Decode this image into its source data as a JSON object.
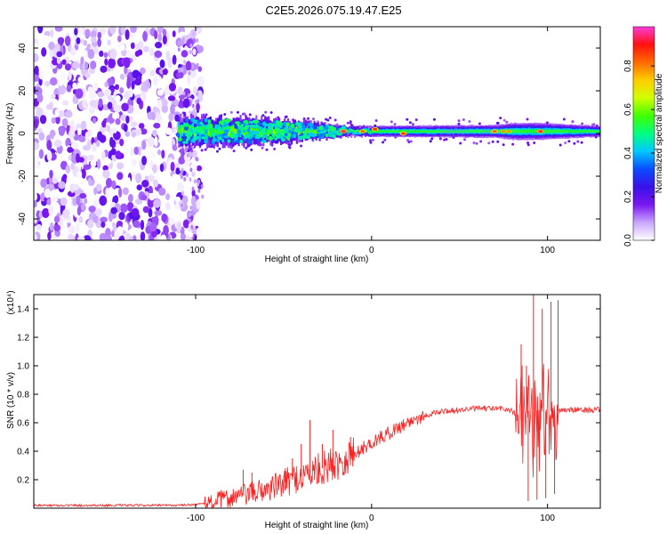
{
  "title": "C2E5.2026.075.19.47.E25",
  "chart_data": [
    {
      "type": "heatmap",
      "name": "spectrogram",
      "xlabel": "Height of straight line (km)",
      "ylabel": "Frequency (Hz)",
      "xlim": [
        -192,
        130
      ],
      "ylim": [
        -50,
        50
      ],
      "xticks": [
        -100,
        0,
        100
      ],
      "xtick_labels": [
        "-100",
        "0",
        "100"
      ],
      "yticks": [
        -40,
        -20,
        0,
        20,
        40
      ],
      "ytick_labels": [
        "-40",
        "-20",
        "0",
        "20",
        "40"
      ],
      "noise_region_km": [
        -192,
        -97
      ],
      "signal_start_km": -110,
      "band_center_hz": 1,
      "band_halfwidth_hz": [
        [
          -110,
          7
        ],
        [
          -60,
          6
        ],
        [
          -30,
          4
        ],
        [
          -15,
          2.5
        ],
        [
          70,
          3
        ],
        [
          80,
          4
        ],
        [
          95,
          4
        ],
        [
          130,
          2.5
        ]
      ],
      "hotspots": [
        {
          "x": -16,
          "f": 1,
          "amp": 0.95
        },
        {
          "x": -5,
          "f": 1,
          "amp": 0.85
        },
        {
          "x": 2,
          "f": 2,
          "amp": 0.9
        },
        {
          "x": 18,
          "f": 0,
          "amp": 0.9
        },
        {
          "x": 70,
          "f": 1,
          "amp": 0.85
        },
        {
          "x": 75,
          "f": 1,
          "amp": 0.8
        },
        {
          "x": 78,
          "f": 1,
          "amp": 0.8
        },
        {
          "x": 96,
          "f": 1,
          "amp": 0.95
        }
      ],
      "colorbar": {
        "label": "Normalized spectral amplitude",
        "range": [
          0,
          0.98
        ],
        "ticks": [
          0.0,
          0.2,
          0.4,
          0.6,
          0.8
        ],
        "tick_labels": [
          "0.0",
          "0.2",
          "0.4",
          "0.6",
          "0.8"
        ],
        "colors": [
          "#ffffff",
          "#c9a6ff",
          "#7a16ef",
          "#3a10e8",
          "#0a4cff",
          "#00c8ff",
          "#00ff80",
          "#40ff00",
          "#d0ff00",
          "#ffcc00",
          "#ff6a00",
          "#ff1010",
          "#ff3bd8"
        ]
      }
    },
    {
      "type": "line",
      "name": "snr",
      "xlabel": "Height of straight line (km)",
      "ylabel": "SNR (10 * v/v)",
      "yscale_note": "(x10⁴)",
      "xlim": [
        -192,
        130
      ],
      "ylim": [
        0,
        1.5
      ],
      "xticks": [
        -100,
        0,
        100
      ],
      "xtick_labels": [
        "-100",
        "0",
        "100"
      ],
      "yticks": [
        0.2,
        0.4,
        0.6,
        0.8,
        1.0,
        1.2,
        1.4
      ],
      "ytick_labels": [
        "0.2",
        "0.4",
        "0.6",
        "0.8",
        "1.0",
        "1.2",
        "1.4"
      ],
      "line_color": "#ff2020",
      "trend_x": [
        -192,
        -110,
        -95,
        -85,
        -70,
        -55,
        -45,
        -30,
        -20,
        -10,
        0,
        10,
        20,
        30,
        40,
        60,
        75,
        80,
        85,
        90,
        95,
        100,
        105,
        110,
        130
      ],
      "trend_y": [
        0.02,
        0.02,
        0.03,
        0.06,
        0.1,
        0.15,
        0.2,
        0.27,
        0.32,
        0.38,
        0.46,
        0.53,
        0.6,
        0.65,
        0.68,
        0.7,
        0.7,
        0.68,
        0.62,
        0.7,
        0.68,
        0.68,
        0.68,
        0.69,
        0.69
      ],
      "spikes": [
        {
          "x": -73,
          "y": 0.27
        },
        {
          "x": -68,
          "y": 0.25
        },
        {
          "x": -49,
          "y": 0.28
        },
        {
          "x": -45,
          "y": 0.35
        },
        {
          "x": -40,
          "y": 0.45
        },
        {
          "x": -35,
          "y": 0.62
        },
        {
          "x": -28,
          "y": 0.45
        },
        {
          "x": -22,
          "y": 0.55
        },
        {
          "x": -12,
          "y": 0.5
        },
        {
          "x": 85,
          "y": 1.15
        },
        {
          "x": 88,
          "y": 1.0
        },
        {
          "x": 89,
          "y": 0.05
        },
        {
          "x": 92,
          "y": 1.5
        },
        {
          "x": 94,
          "y": 0.06
        },
        {
          "x": 97,
          "y": 1.4
        },
        {
          "x": 99,
          "y": 0.07
        },
        {
          "x": 102,
          "y": 1.45
        },
        {
          "x": 104,
          "y": 0.1
        },
        {
          "x": 106,
          "y": 1.46
        }
      ]
    }
  ]
}
